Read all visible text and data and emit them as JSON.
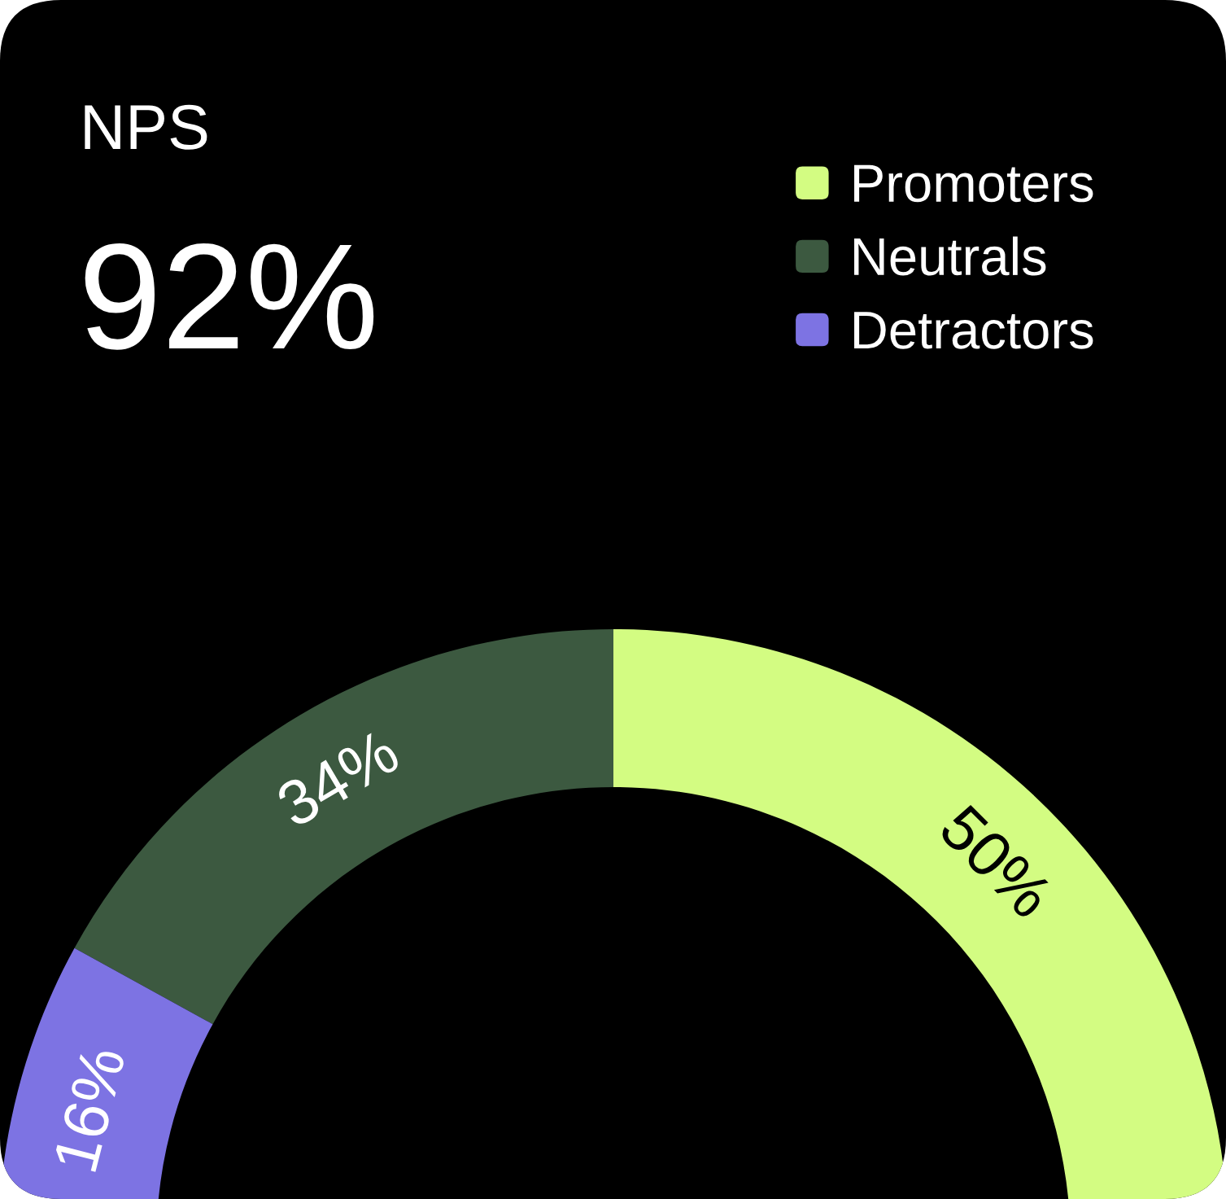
{
  "chart_data": {
    "type": "donut",
    "title": "NPS",
    "subtitle": "92%",
    "categories": [
      "Promoters",
      "Neutrals",
      "Detractors"
    ],
    "values": [
      50,
      34,
      16
    ],
    "colors": [
      "#d3fc82",
      "#3c5940",
      "#7d73e3"
    ],
    "value_labels": [
      "50%",
      "34%",
      "16%"
    ],
    "legend": "top right"
  }
}
